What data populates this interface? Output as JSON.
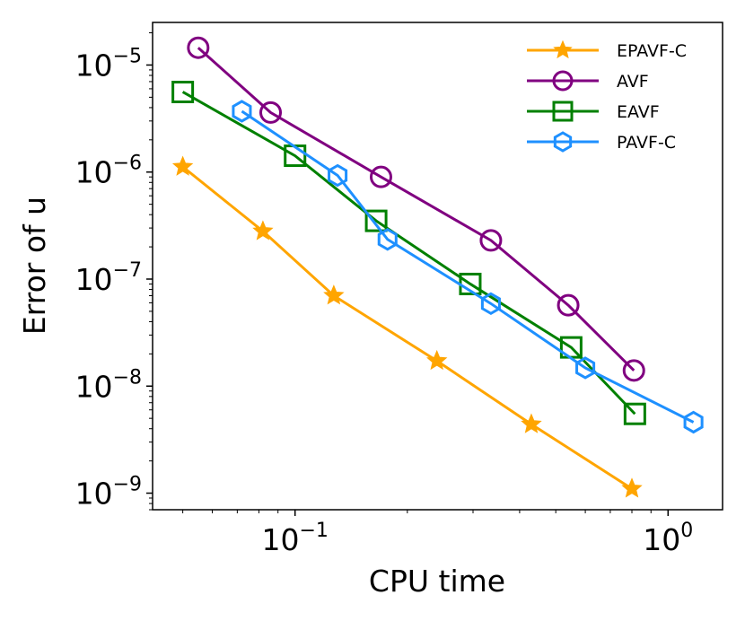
{
  "chart_data": {
    "type": "line",
    "xscale": "log",
    "yscale": "log",
    "xlabel": "CPU time",
    "ylabel": "Error of u",
    "xlim": [
      0.0415,
      1.4
    ],
    "ylim": [
      7e-10,
      2.5e-05
    ],
    "grid": false,
    "legend_position": "top-right",
    "xticks": [
      {
        "value": 0.1,
        "base": "10",
        "exp": "−1"
      },
      {
        "value": 1,
        "base": "10",
        "exp": "0"
      }
    ],
    "yticks": [
      {
        "value": 1e-05,
        "base": "10",
        "exp": "−5"
      },
      {
        "value": 1e-06,
        "base": "10",
        "exp": "−6"
      },
      {
        "value": 1e-07,
        "base": "10",
        "exp": "−7"
      },
      {
        "value": 1e-08,
        "base": "10",
        "exp": "−8"
      },
      {
        "value": 1e-09,
        "base": "10",
        "exp": "−9"
      }
    ],
    "series": [
      {
        "name": "EPAVF-C",
        "color": "#ffa500",
        "marker": "star",
        "x": [
          0.05,
          0.082,
          0.127,
          0.24,
          0.43,
          0.8
        ],
        "y": [
          1.12e-06,
          2.8e-07,
          7e-08,
          1.72e-08,
          4.4e-09,
          1.1e-09
        ]
      },
      {
        "name": "AVF",
        "color": "#800080",
        "marker": "circle",
        "x": [
          0.055,
          0.086,
          0.17,
          0.335,
          0.54,
          0.81
        ],
        "y": [
          1.45e-05,
          3.6e-06,
          9e-07,
          2.3e-07,
          5.7e-08,
          1.4e-08
        ]
      },
      {
        "name": "EAVF",
        "color": "#008000",
        "marker": "square",
        "x": [
          0.05,
          0.1,
          0.165,
          0.295,
          0.55,
          0.815
        ],
        "y": [
          5.6e-06,
          1.42e-06,
          3.5e-07,
          9e-08,
          2.3e-08,
          5.5e-09
        ]
      },
      {
        "name": "PAVF-C",
        "color": "#1e90ff",
        "marker": "hexagon",
        "x": [
          0.072,
          0.13,
          0.177,
          0.335,
          0.6,
          1.17
        ],
        "y": [
          3.7e-06,
          9.3e-07,
          2.35e-07,
          5.9e-08,
          1.48e-08,
          4.6e-09
        ]
      }
    ]
  }
}
